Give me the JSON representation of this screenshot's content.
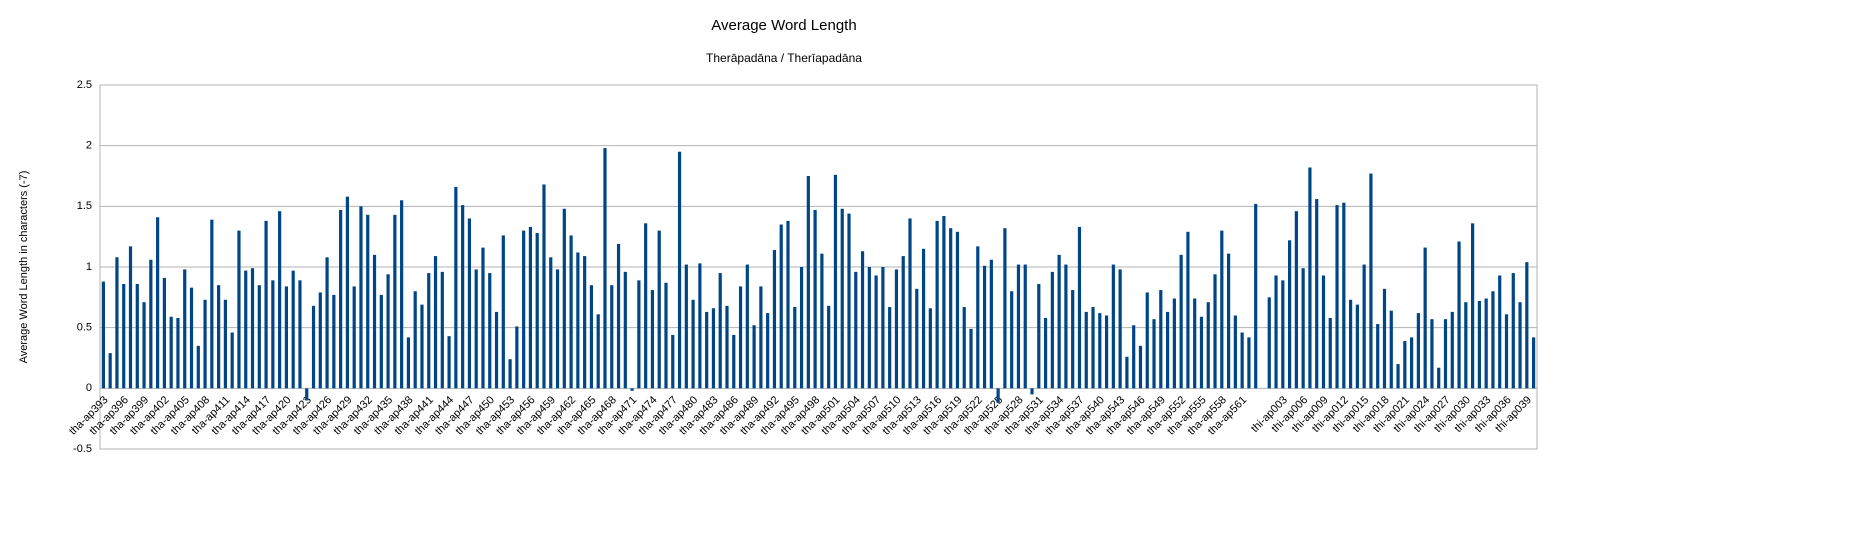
{
  "chart_data": {
    "type": "bar",
    "title": "Average Word Length",
    "subtitle": "Therāpadāna / Therīapadāna",
    "y_label": "Average Word Length in characters (-7)",
    "color": "#004586",
    "grid": true,
    "ylim": [
      -0.5,
      2.5
    ],
    "yticks": [
      -0.5,
      0,
      0.5,
      1,
      1.5,
      2,
      2.5
    ],
    "categories": [
      "tha-ap393",
      null,
      null,
      "tha-ap396",
      null,
      null,
      "tha-ap399",
      null,
      null,
      "tha-ap402",
      null,
      null,
      "tha-ap405",
      null,
      null,
      "tha-ap408",
      null,
      null,
      "tha-ap411",
      null,
      null,
      "tha-ap414",
      null,
      null,
      "tha-ap417",
      null,
      null,
      "tha-ap420",
      null,
      null,
      "tha-ap423",
      null,
      null,
      "tha-ap426",
      null,
      null,
      "tha-ap429",
      null,
      null,
      "tha-ap432",
      null,
      null,
      "tha-ap435",
      null,
      null,
      "tha-ap438",
      null,
      null,
      "tha-ap441",
      null,
      null,
      "tha-ap444",
      null,
      null,
      "tha-ap447",
      null,
      null,
      "tha-ap450",
      null,
      null,
      "tha-ap453",
      null,
      null,
      "tha-ap456",
      null,
      null,
      "tha-ap459",
      null,
      null,
      "tha-ap462",
      null,
      null,
      "tha-ap465",
      null,
      null,
      "tha-ap468",
      null,
      null,
      "tha-ap471",
      null,
      null,
      "tha-ap474",
      null,
      null,
      "tha-ap477",
      null,
      null,
      "tha-ap480",
      null,
      null,
      "tha-ap483",
      null,
      null,
      "tha-ap486",
      null,
      null,
      "tha-ap489",
      null,
      null,
      "tha-ap492",
      null,
      null,
      "tha-ap495",
      null,
      null,
      "tha-ap498",
      null,
      null,
      "tha-ap501",
      null,
      null,
      "tha-ap504",
      null,
      null,
      "tha-ap507",
      null,
      null,
      "tha-ap510",
      null,
      null,
      "tha-ap513",
      null,
      null,
      "tha-ap516",
      null,
      null,
      "tha-ap519",
      null,
      null,
      "tha-ap522",
      null,
      null,
      "tha-ap525",
      null,
      null,
      "tha-ap528",
      null,
      null,
      "tha-ap531",
      null,
      null,
      "tha-ap534",
      null,
      null,
      "tha-ap537",
      null,
      null,
      "tha-ap540",
      null,
      null,
      "tha-ap543",
      null,
      null,
      "tha-ap546",
      null,
      null,
      "tha-ap549",
      null,
      null,
      "tha-ap552",
      null,
      null,
      "tha-ap555",
      null,
      null,
      "tha-ap558",
      null,
      null,
      "tha-ap561",
      null,
      null,
      null,
      null,
      null,
      "thi-ap003",
      null,
      null,
      "thi-ap006",
      null,
      null,
      "thi-ap009",
      null,
      null,
      "thi-ap012",
      null,
      null,
      "thi-ap015",
      null,
      null,
      "thi-ap018",
      null,
      null,
      "thi-ap021",
      null,
      null,
      "thi-ap024",
      null,
      null,
      "thi-ap027",
      null,
      null,
      "thi-ap030",
      null,
      null,
      "thi-ap033",
      null,
      null,
      "thi-ap036",
      null,
      null,
      "thi-ap039",
      null
    ],
    "values": [
      0.88,
      0.29,
      1.08,
      0.86,
      1.17,
      0.86,
      0.71,
      1.06,
      1.41,
      0.91,
      0.59,
      0.58,
      0.98,
      0.83,
      0.35,
      0.73,
      1.39,
      0.85,
      0.73,
      0.46,
      1.3,
      0.97,
      0.99,
      0.85,
      1.38,
      0.89,
      1.46,
      0.84,
      0.97,
      0.89,
      -0.1,
      0.68,
      0.79,
      1.08,
      0.77,
      1.47,
      1.58,
      0.84,
      1.5,
      1.43,
      1.1,
      0.77,
      0.94,
      1.43,
      1.55,
      0.42,
      0.8,
      0.69,
      0.95,
      1.09,
      0.96,
      0.43,
      1.66,
      1.51,
      1.4,
      0.98,
      1.16,
      0.95,
      0.63,
      1.26,
      0.24,
      0.51,
      1.3,
      1.33,
      1.28,
      1.68,
      1.08,
      0.98,
      1.48,
      1.26,
      1.12,
      1.09,
      0.85,
      0.61,
      1.98,
      0.85,
      1.19,
      0.96,
      -0.02,
      0.89,
      1.36,
      0.81,
      1.3,
      0.87,
      0.44,
      1.95,
      1.02,
      0.73,
      1.03,
      0.63,
      0.66,
      0.95,
      0.68,
      0.44,
      0.84,
      1.02,
      0.52,
      0.84,
      0.62,
      1.14,
      1.35,
      1.38,
      0.67,
      1.0,
      1.75,
      1.47,
      1.11,
      0.68,
      1.76,
      1.48,
      1.44,
      0.96,
      1.13,
      1.0,
      0.93,
      1.0,
      0.67,
      0.98,
      1.09,
      1.4,
      0.82,
      1.15,
      0.66,
      1.38,
      1.42,
      1.32,
      1.29,
      0.67,
      0.49,
      1.17,
      1.01,
      1.06,
      -0.12,
      1.32,
      0.8,
      1.02,
      1.02,
      -0.05,
      0.86,
      0.58,
      0.96,
      1.1,
      1.02,
      0.81,
      1.33,
      0.63,
      0.67,
      0.62,
      0.6,
      1.02,
      0.98,
      0.26,
      0.52,
      0.35,
      0.79,
      0.57,
      0.81,
      0.63,
      0.74,
      1.1,
      1.29,
      0.74,
      0.59,
      0.71,
      0.94,
      1.3,
      1.11,
      0.6,
      0.46,
      0.42,
      1.52,
      null,
      0.75,
      0.93,
      0.89,
      1.22,
      1.46,
      0.99,
      1.82,
      1.56,
      0.93,
      0.58,
      1.51,
      1.53,
      0.73,
      0.69,
      1.02,
      1.77,
      0.53,
      0.82,
      0.64,
      0.2,
      0.39,
      0.42,
      0.62,
      1.16,
      0.57,
      0.17,
      0.57,
      0.63,
      1.21,
      0.71,
      1.36,
      0.72,
      0.74,
      0.8,
      0.93,
      0.61,
      0.95,
      0.71,
      1.04,
      0.42
    ]
  }
}
